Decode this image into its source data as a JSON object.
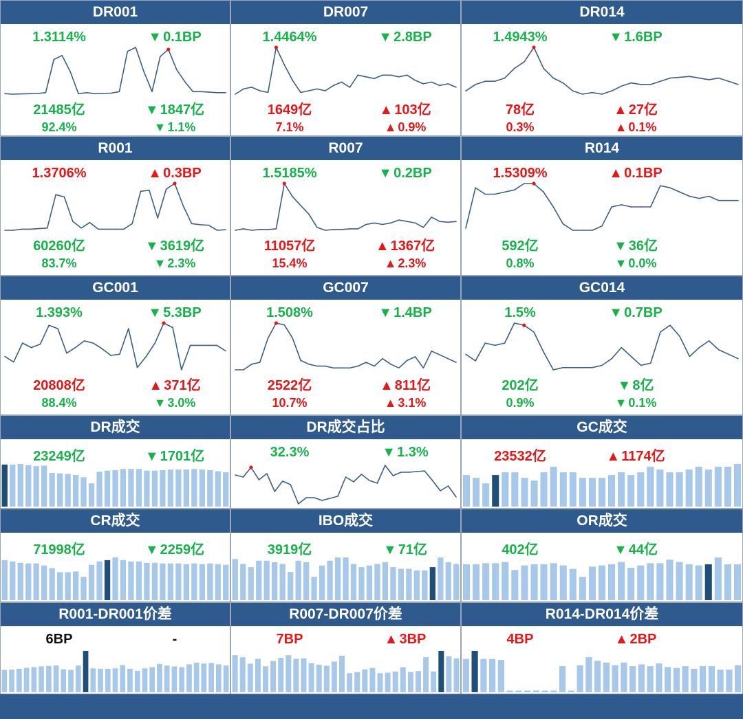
{
  "colors": {
    "header": "#2f5a8e",
    "up": "#e51717",
    "down": "#17b34a",
    "line": "#3b5f86",
    "bar": "#a8c8ea",
    "bar_highlight": "#1f4e79"
  },
  "chart_data": [
    {
      "name": "DR001",
      "type": "line",
      "rate": "1.3114%",
      "rate_change": "0.1BP",
      "rate_dir": "down",
      "rate_color": "down",
      "volume": "21485亿",
      "volume_change": "1847亿",
      "volume_dir": "down",
      "volume_color": "down",
      "share": "92.4%",
      "share_change": "1.1%",
      "share_dir": "down",
      "share_color": "down",
      "values": [
        1.18,
        1.175,
        1.178,
        1.18,
        1.182,
        1.19,
        1.52,
        1.56,
        1.4,
        1.18,
        1.19,
        1.18,
        1.182,
        1.185,
        1.2,
        1.6,
        1.64,
        1.4,
        1.2,
        1.55,
        1.62,
        1.42,
        1.3,
        1.2,
        1.2,
        1.195,
        1.19,
        1.19
      ],
      "highlight": 20
    },
    {
      "name": "DR007",
      "type": "line",
      "rate": "1.4464%",
      "rate_change": "2.8BP",
      "rate_dir": "down",
      "rate_color": "down",
      "volume": "1649亿",
      "volume_change": "103亿",
      "volume_dir": "up",
      "volume_color": "up",
      "share": "7.1%",
      "share_change": "0.9%",
      "share_dir": "up",
      "share_color": "up",
      "values": [
        1.61,
        1.64,
        1.65,
        1.63,
        1.62,
        1.88,
        1.78,
        1.69,
        1.62,
        1.63,
        1.64,
        1.63,
        1.66,
        1.68,
        1.65,
        1.72,
        1.71,
        1.7,
        1.72,
        1.72,
        1.71,
        1.72,
        1.69,
        1.67,
        1.68,
        1.66,
        1.67,
        1.65
      ],
      "highlight": 5
    },
    {
      "name": "DR014",
      "type": "line",
      "rate": "1.4943%",
      "rate_change": "1.6BP",
      "rate_dir": "down",
      "rate_color": "down",
      "volume": "78亿",
      "volume_change": "27亿",
      "volume_dir": "up",
      "volume_color": "up",
      "share": "0.3%",
      "share_change": "0.1%",
      "share_dir": "up",
      "share_color": "up",
      "values": [
        1.58,
        1.62,
        1.64,
        1.64,
        1.66,
        1.72,
        1.76,
        1.85,
        1.72,
        1.66,
        1.63,
        1.58,
        1.56,
        1.57,
        1.56,
        1.58,
        1.61,
        1.63,
        1.62,
        1.62,
        1.64,
        1.66,
        1.665,
        1.67,
        1.66,
        1.65,
        1.66,
        1.64,
        1.62
      ],
      "highlight": 7
    },
    {
      "name": "R001",
      "type": "line",
      "rate": "1.3706%",
      "rate_change": "0.3BP",
      "rate_dir": "up",
      "rate_color": "up",
      "volume": "60260亿",
      "volume_change": "3619亿",
      "volume_dir": "down",
      "volume_color": "down",
      "share": "83.7%",
      "share_change": "2.3%",
      "share_dir": "down",
      "share_color": "down",
      "values": [
        1.2,
        1.2,
        1.21,
        1.21,
        1.215,
        1.22,
        1.52,
        1.5,
        1.28,
        1.22,
        1.27,
        1.21,
        1.21,
        1.21,
        1.21,
        1.26,
        1.55,
        1.56,
        1.31,
        1.57,
        1.62,
        1.42,
        1.26,
        1.25,
        1.245,
        1.2,
        1.205
      ],
      "highlight": 20
    },
    {
      "name": "R007",
      "type": "line",
      "rate": "1.5185%",
      "rate_change": "0.2BP",
      "rate_dir": "down",
      "rate_color": "down",
      "volume": "11057亿",
      "volume_change": "1367亿",
      "volume_dir": "up",
      "volume_color": "up",
      "share": "15.4%",
      "share_change": "2.3%",
      "share_dir": "up",
      "share_color": "up",
      "values": [
        1.64,
        1.65,
        1.64,
        1.645,
        1.645,
        1.65,
        1.96,
        1.87,
        1.81,
        1.75,
        1.66,
        1.64,
        1.645,
        1.645,
        1.65,
        1.65,
        1.68,
        1.69,
        1.68,
        1.69,
        1.71,
        1.7,
        1.69,
        1.66,
        1.73,
        1.7,
        1.695,
        1.7
      ],
      "highlight": 6
    },
    {
      "name": "R014",
      "type": "line",
      "rate": "1.5309%",
      "rate_change": "0.1BP",
      "rate_dir": "up",
      "rate_color": "up",
      "volume": "592亿",
      "volume_change": "36亿",
      "volume_dir": "down",
      "volume_color": "down",
      "share": "0.8%",
      "share_change": "0.0%",
      "share_dir": "down",
      "share_color": "down",
      "values": [
        1.59,
        1.78,
        1.75,
        1.75,
        1.76,
        1.77,
        1.8,
        1.8,
        1.76,
        1.69,
        1.61,
        1.58,
        1.58,
        1.58,
        1.6,
        1.69,
        1.7,
        1.69,
        1.69,
        1.69,
        1.79,
        1.78,
        1.76,
        1.74,
        1.73,
        1.74,
        1.72,
        1.72,
        1.72
      ],
      "highlight": 7
    },
    {
      "name": "GC001",
      "type": "line",
      "rate": "1.393%",
      "rate_change": "5.3BP",
      "rate_dir": "down",
      "rate_color": "down",
      "volume": "20808亿",
      "volume_change": "371亿",
      "volume_dir": "up",
      "volume_color": "up",
      "share": "88.4%",
      "share_change": "3.0%",
      "share_dir": "down",
      "share_color": "down",
      "values": [
        1.3,
        1.25,
        1.42,
        1.38,
        1.41,
        1.58,
        1.55,
        1.33,
        1.38,
        1.44,
        1.42,
        1.37,
        1.31,
        1.32,
        1.55,
        1.2,
        1.3,
        1.42,
        1.6,
        1.56,
        1.18,
        1.4,
        1.4,
        1.4,
        1.4,
        1.35
      ],
      "highlight": 18
    },
    {
      "name": "GC007",
      "type": "line",
      "rate": "1.508%",
      "rate_change": "1.4BP",
      "rate_dir": "down",
      "rate_color": "down",
      "volume": "2522亿",
      "volume_change": "811亿",
      "volume_dir": "up",
      "volume_color": "up",
      "share": "10.7%",
      "share_change": "3.1%",
      "share_dir": "up",
      "share_color": "up",
      "values": [
        1.59,
        1.59,
        1.62,
        1.63,
        1.76,
        1.84,
        1.83,
        1.76,
        1.64,
        1.62,
        1.61,
        1.61,
        1.6,
        1.6,
        1.6,
        1.61,
        1.63,
        1.61,
        1.65,
        1.62,
        1.6,
        1.64,
        1.66,
        1.6,
        1.69,
        1.67,
        1.65,
        1.63
      ],
      "highlight": 5
    },
    {
      "name": "GC014",
      "type": "line",
      "rate": "1.5%",
      "rate_change": "0.7BP",
      "rate_dir": "down",
      "rate_color": "down",
      "volume": "202亿",
      "volume_change": "8亿",
      "volume_dir": "down",
      "volume_color": "down",
      "share": "0.9%",
      "share_change": "0.1%",
      "share_dir": "down",
      "share_color": "down",
      "values": [
        1.61,
        1.58,
        1.66,
        1.65,
        1.66,
        1.75,
        1.74,
        1.71,
        1.62,
        1.54,
        1.55,
        1.55,
        1.55,
        1.55,
        1.56,
        1.59,
        1.64,
        1.6,
        1.56,
        1.57,
        1.71,
        1.74,
        1.69,
        1.6,
        1.64,
        1.67,
        1.63,
        1.61,
        1.59
      ],
      "highlight": 6
    },
    {
      "name": "DR成交",
      "type": "bar",
      "value": "23249亿",
      "change": "1701亿",
      "dir": "down",
      "color": "down",
      "values": [
        24950,
        24950,
        25000,
        24900,
        24800,
        24850,
        24200,
        24150,
        24100,
        24000,
        23800,
        23250,
        24300,
        24400,
        24450,
        24550,
        24550,
        24550,
        24400,
        24400,
        24450,
        24500,
        24500,
        24500,
        24550,
        24500,
        24450,
        24350,
        24250
      ],
      "highlight": 0
    },
    {
      "name": "DR成交占比",
      "type": "line",
      "value": "32.3%",
      "change": "1.3%",
      "dir": "down",
      "color": "down",
      "values": [
        34.4,
        34.1,
        35.5,
        33.7,
        34.6,
        32.0,
        33.5,
        33.0,
        30.2,
        31.1,
        31.1,
        30.7,
        31.0,
        31.3,
        34.1,
        33.4,
        34.5,
        33.6,
        33.2,
        35.8,
        34.3,
        34.8,
        34.8,
        34.9,
        35.0,
        33.6,
        32.1,
        32.8,
        31.2
      ],
      "highlight": 2
    },
    {
      "name": "GC成交",
      "type": "bar",
      "value": "23532亿",
      "change": "1174亿",
      "dir": "up",
      "color": "up",
      "values": [
        24100,
        24050,
        23950,
        24100,
        24150,
        24150,
        24050,
        24000,
        24150,
        24250,
        24150,
        24150,
        24050,
        24050,
        24050,
        24100,
        24150,
        24100,
        24150,
        24250,
        24200,
        24150,
        24150,
        24200,
        24250,
        24200,
        24250,
        24250,
        24300
      ],
      "highlight": 3
    },
    {
      "name": "CR成交",
      "type": "bar",
      "value": "71998亿",
      "change": "2259亿",
      "dir": "down",
      "color": "down",
      "values": [
        74200,
        74100,
        74000,
        73950,
        73950,
        73800,
        73600,
        73300,
        73300,
        73350,
        72950,
        73850,
        74100,
        74200,
        74400,
        74200,
        74100,
        74100,
        74000,
        74000,
        73950,
        73950,
        73950,
        73900,
        73950,
        73900,
        73950,
        73900,
        73850
      ],
      "highlight": 13
    },
    {
      "name": "IBO成交",
      "type": "bar",
      "value": "3919亿",
      "change": "71亿",
      "dir": "down",
      "color": "down",
      "values": [
        5400,
        5250,
        5150,
        5350,
        5350,
        5300,
        5250,
        5000,
        5350,
        5300,
        4850,
        5200,
        5350,
        5450,
        5450,
        5250,
        5150,
        5200,
        5250,
        5300,
        5150,
        5100,
        5100,
        5050,
        5050,
        5150,
        5450,
        5300,
        5250
      ],
      "highlight": 25
    },
    {
      "name": "OR成交",
      "type": "bar",
      "value": "402亿",
      "change": "44亿",
      "dir": "down",
      "color": "down",
      "values": [
        560,
        560,
        570,
        570,
        580,
        510,
        550,
        560,
        560,
        570,
        550,
        520,
        450,
        540,
        550,
        560,
        580,
        530,
        550,
        570,
        570,
        600,
        580,
        560,
        550,
        560,
        620,
        560,
        560
      ],
      "highlight": 25
    },
    {
      "name": "R001-DR001价差",
      "type": "bar",
      "value": "6BP",
      "change": "-",
      "dir": "none",
      "color": "neutral",
      "values": [
        5.5,
        5.6,
        5.8,
        6.0,
        6.2,
        6.4,
        6.5,
        6.6,
        5.7,
        5.5,
        6.6,
        10.2,
        5.9,
        5.8,
        5.8,
        5.9,
        6.7,
        5.8,
        5.3,
        5.9,
        6.2,
        7.0,
        6.6,
        6.4,
        6.2,
        6.9,
        7.3,
        7.1,
        7.2,
        6.9,
        6.6
      ],
      "highlight": 11
    },
    {
      "name": "R007-DR007价差",
      "type": "bar",
      "value": "7BP",
      "change": "3BP",
      "dir": "up",
      "color": "up",
      "values": [
        7.0,
        6.6,
        5.4,
        6.3,
        4.9,
        5.9,
        6.5,
        7.0,
        6.3,
        6.4,
        5.5,
        5.2,
        5.0,
        5.8,
        6.9,
        3.6,
        3.8,
        4.3,
        4.6,
        3.6,
        3.7,
        3.9,
        4.7,
        3.8,
        4.0,
        6.6,
        3.9,
        7.8,
        6.8,
        6.4
      ],
      "highlight": 27
    },
    {
      "name": "R014-DR014价差",
      "type": "bar",
      "value": "4BP",
      "change": "2BP",
      "dir": "up",
      "color": "up",
      "values": [
        4.6,
        5.5,
        4.6,
        4.6,
        4.5,
        0,
        0,
        0,
        0,
        0,
        0,
        3.8,
        0,
        3.9,
        4.8,
        4.4,
        4.2,
        3.9,
        4.2,
        3.8,
        4.0,
        3.8,
        4.1,
        3.7,
        3.6,
        3.8,
        3.5,
        3.8,
        3.8,
        3.4,
        3.4,
        3.9
      ],
      "highlight": 1
    }
  ]
}
